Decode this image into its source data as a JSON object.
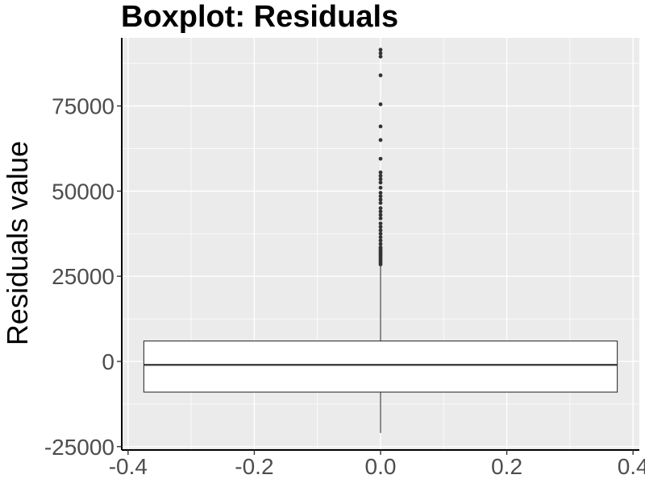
{
  "chart_data": {
    "type": "boxplot",
    "title": "Boxplot: Residuals",
    "xlabel": "",
    "ylabel": "Residuals value",
    "xlim": [
      -0.41,
      0.41
    ],
    "ylim": [
      -26000,
      95000
    ],
    "x_ticks": [
      -0.4,
      -0.2,
      0.0,
      0.2,
      0.4
    ],
    "x_tick_labels": [
      "-0.4",
      "-0.2",
      "0.0",
      "0.2",
      "0.4"
    ],
    "y_ticks": [
      -25000,
      0,
      25000,
      50000,
      75000
    ],
    "y_tick_labels": [
      "-25000",
      "0",
      "25000",
      "50000",
      "75000"
    ],
    "grid": true,
    "background_color": "#ebebeb",
    "grid_color": "#ffffff",
    "box": {
      "x_min": -0.375,
      "x_max": 0.375,
      "x_center": 0.0,
      "q1": -9000,
      "median": -1000,
      "q3": 6000,
      "whisker_low": -21000,
      "whisker_high": 28000,
      "fill": "#ffffff",
      "stroke": "#333333"
    },
    "outliers": [
      91500,
      90500,
      89500,
      84000,
      75500,
      69000,
      65000,
      59500,
      55500,
      54500,
      53500,
      52500,
      51000,
      49500,
      48500,
      47500,
      46500,
      45000,
      44000,
      43000,
      42000,
      40500,
      39500,
      38500,
      37500,
      36500,
      35500,
      34500,
      33500,
      33000,
      32500,
      32000,
      31500,
      31000,
      30500,
      30000,
      29500,
      29000,
      28500
    ],
    "outlier_color": "#333333"
  }
}
